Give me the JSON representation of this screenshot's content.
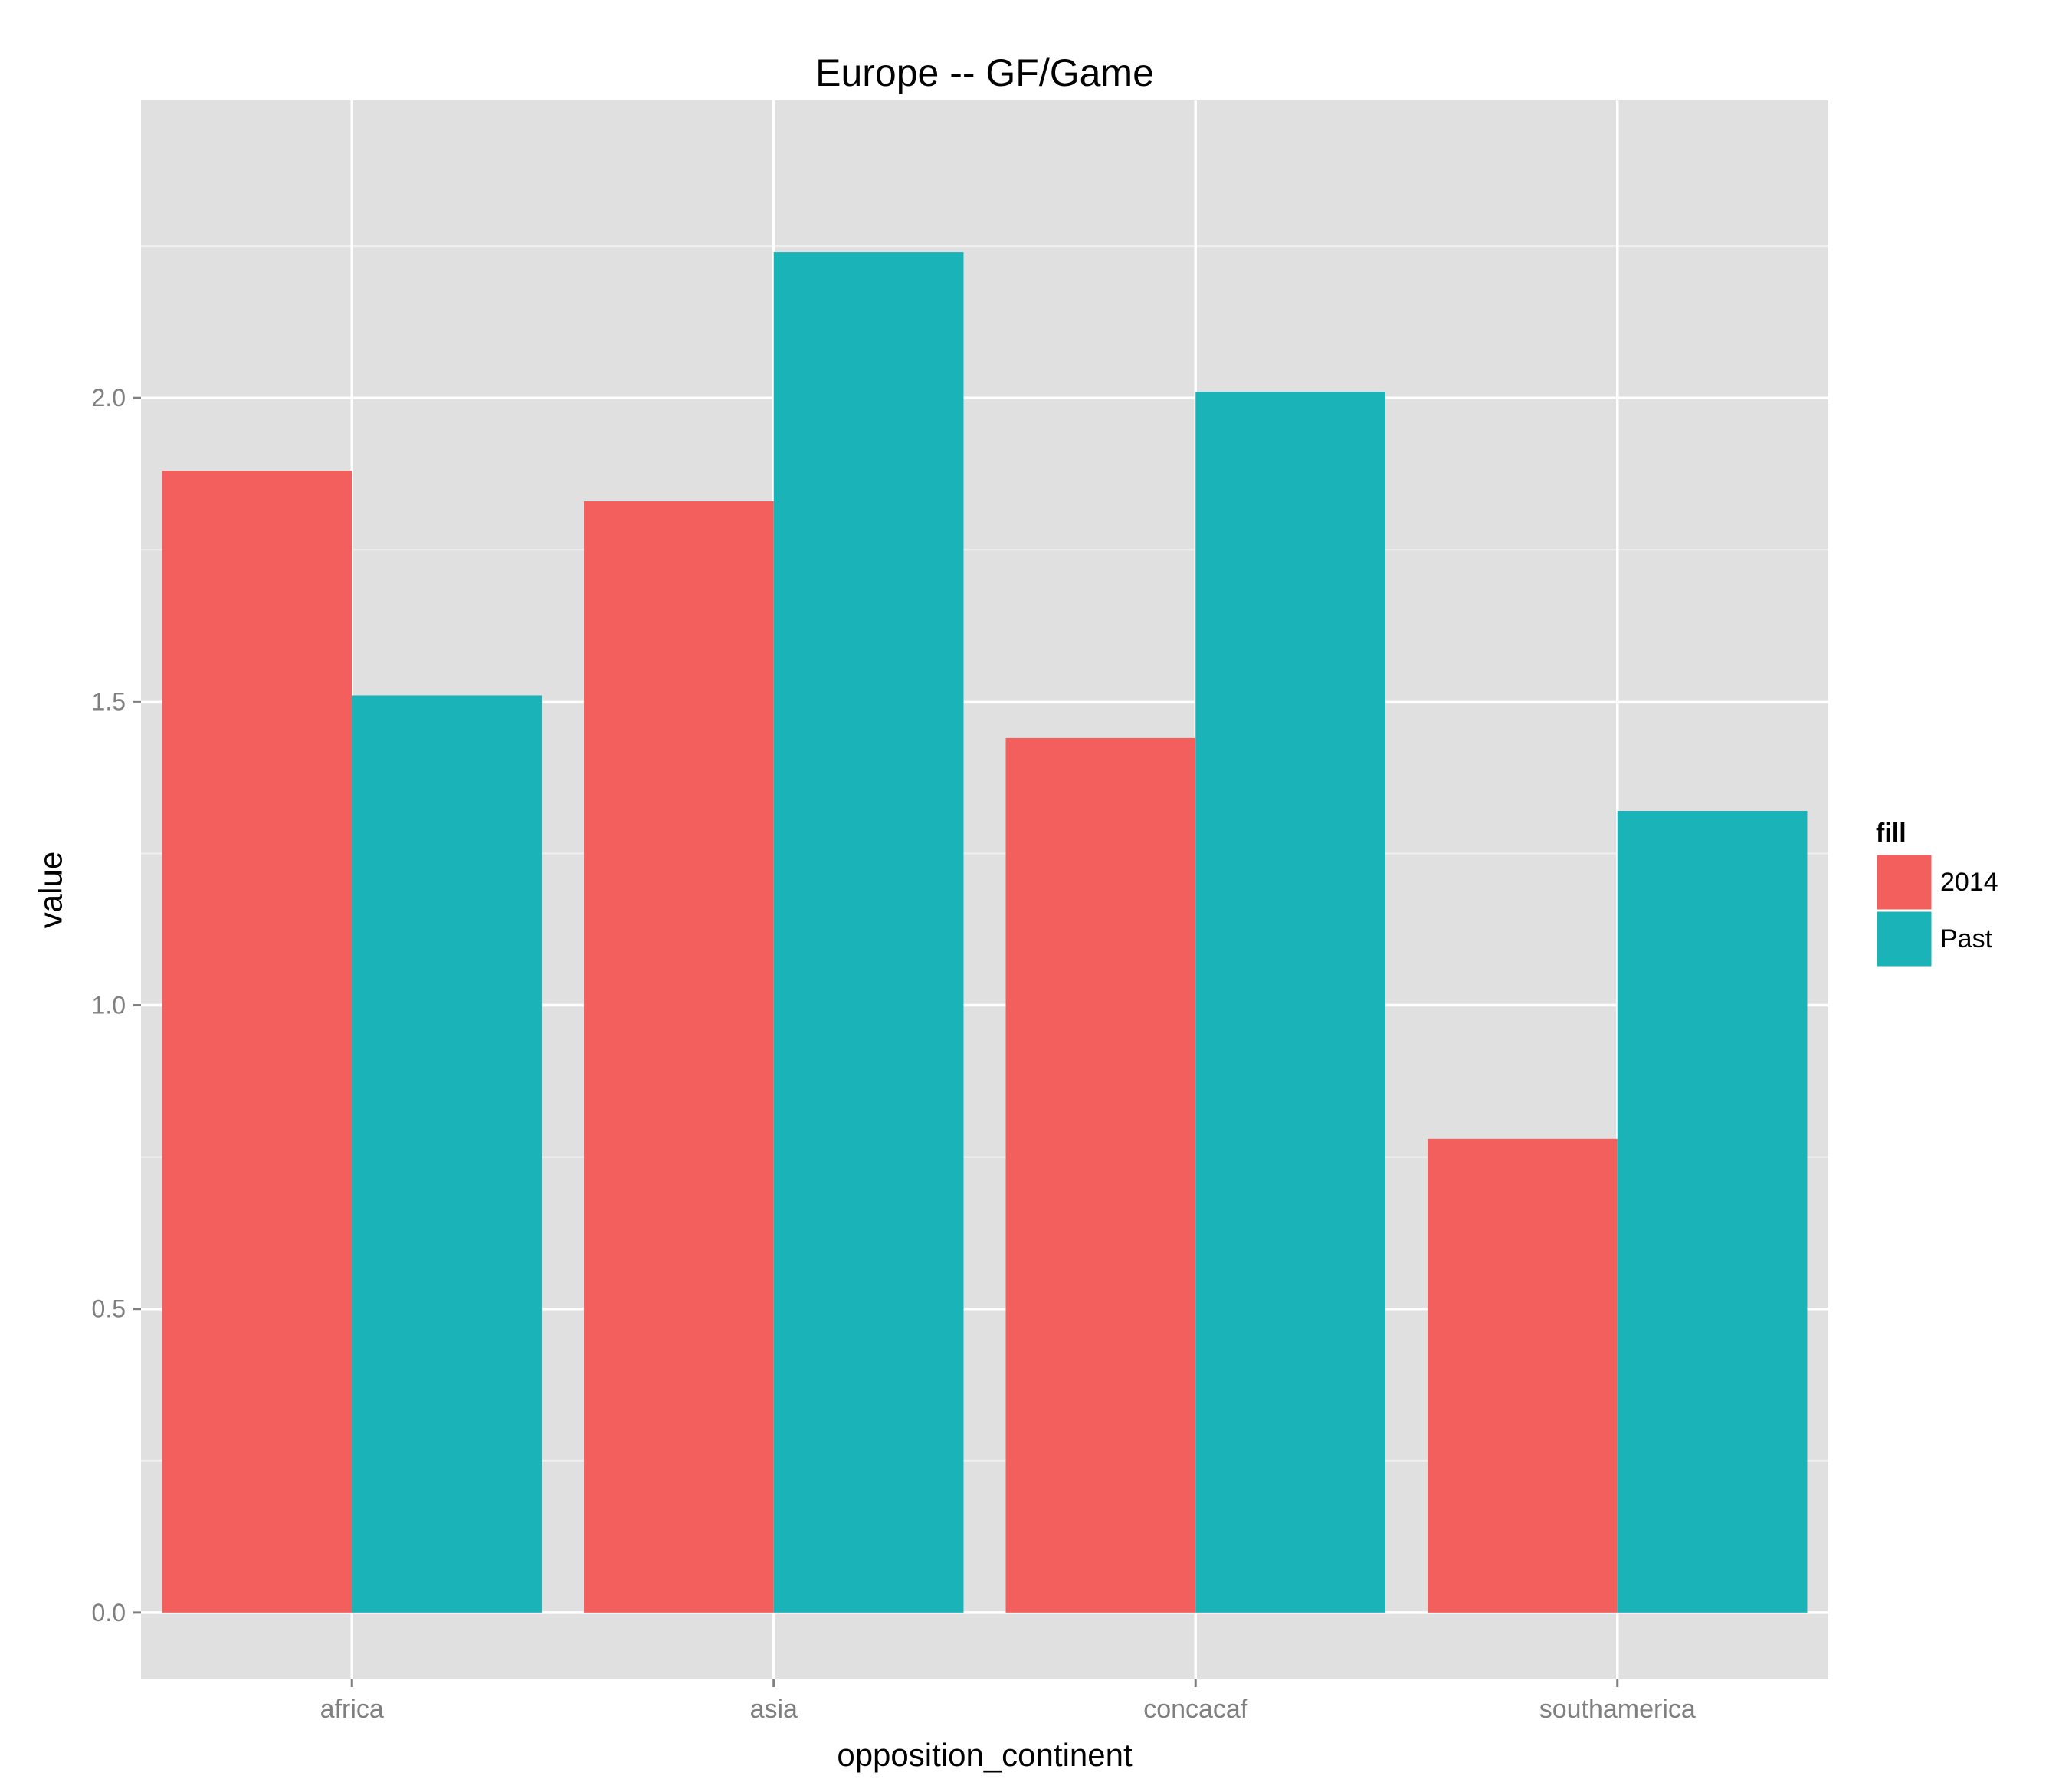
{
  "chart_data": {
    "type": "bar",
    "title": "Europe -- GF/Game",
    "xlabel": "opposition_continent",
    "ylabel": "value",
    "categories": [
      "africa",
      "asia",
      "concacaf",
      "southamerica"
    ],
    "series": [
      {
        "name": "2014",
        "color": "#F25F5C",
        "values": [
          1.88,
          1.83,
          1.44,
          0.78
        ]
      },
      {
        "name": "Past",
        "color": "#1AB3B8",
        "values": [
          1.51,
          2.24,
          2.01,
          1.32
        ]
      }
    ],
    "ylim": [
      -0.11,
      2.49
    ],
    "yticks": [
      0.0,
      0.5,
      1.0,
      1.5,
      2.0
    ],
    "ytick_labels": [
      "0.0",
      "0.5",
      "1.0",
      "1.5",
      "2.0"
    ],
    "legend": {
      "title": "fill",
      "position": "right"
    },
    "grid": true,
    "panel_background": "#E0E0E0",
    "grid_color": "#FFFFFF"
  }
}
